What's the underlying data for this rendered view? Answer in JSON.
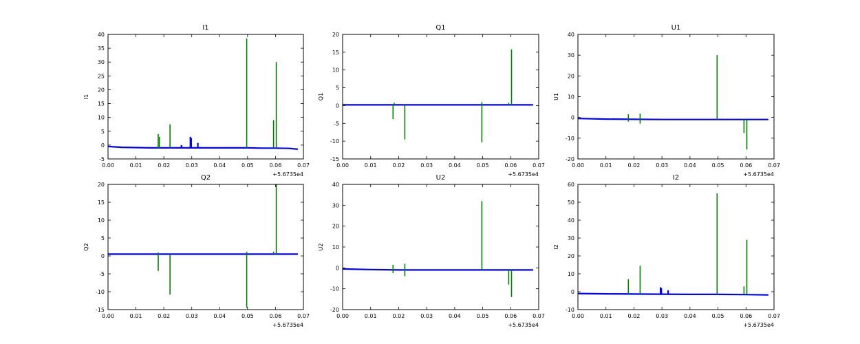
{
  "colors": {
    "series_blue": "#0000ff",
    "series_green": "#007f00",
    "axes": "#000000",
    "background": "#ffffff"
  },
  "chart_data": [
    {
      "type": "line",
      "title": "I1",
      "ylabel": "I1",
      "xlabel": "",
      "x_offset_label": "+5.6735e4",
      "xlim": [
        0.0,
        0.07
      ],
      "ylim": [
        -5,
        40
      ],
      "xticks": [
        "0.00",
        "0.01",
        "0.02",
        "0.03",
        "0.04",
        "0.05",
        "0.06",
        "0.07"
      ],
      "yticks": [
        "-5",
        "0",
        "5",
        "10",
        "15",
        "20",
        "25",
        "30",
        "35",
        "40"
      ],
      "grid": false,
      "series": [
        {
          "color": "blue",
          "segments": [
            [
              [
                0.0,
                -0.5
              ],
              [
                0.005,
                -0.8
              ],
              [
                0.01,
                -0.9
              ],
              [
                0.015,
                -1.0
              ],
              [
                0.02,
                -1.0
              ],
              [
                0.025,
                -1.0
              ],
              [
                0.03,
                -1.0
              ],
              [
                0.035,
                -1.0
              ],
              [
                0.04,
                -1.0
              ],
              [
                0.045,
                -1.0
              ],
              [
                0.05,
                -1.0
              ],
              [
                0.055,
                -1.1
              ],
              [
                0.06,
                -1.1
              ],
              [
                0.065,
                -1.2
              ],
              [
                0.068,
                -1.5
              ]
            ],
            [
              [
                0.0263,
                -1.0
              ],
              [
                0.0263,
                0.0
              ]
            ],
            [
              [
                0.0295,
                -1.0
              ],
              [
                0.0295,
                3.0
              ]
            ],
            [
              [
                0.0298,
                -1.0
              ],
              [
                0.0298,
                2.5
              ]
            ],
            [
              [
                0.0322,
                -1.0
              ],
              [
                0.0322,
                0.8
              ]
            ]
          ]
        },
        {
          "color": "green",
          "segments": [
            [
              [
                0.018,
                -1.0
              ],
              [
                0.018,
                4.0
              ]
            ],
            [
              [
                0.0184,
                -1.0
              ],
              [
                0.0184,
                3.0
              ]
            ],
            [
              [
                0.0222,
                -1.0
              ],
              [
                0.0222,
                7.5
              ]
            ],
            [
              [
                0.0497,
                -1.0
              ],
              [
                0.0497,
                38.5
              ]
            ],
            [
              [
                0.0593,
                -1.0
              ],
              [
                0.0593,
                9.0
              ]
            ],
            [
              [
                0.0603,
                -1.0
              ],
              [
                0.0603,
                30.0
              ]
            ]
          ]
        }
      ]
    },
    {
      "type": "line",
      "title": "Q1",
      "ylabel": "Q1",
      "xlabel": "",
      "x_offset_label": "+5.6735e4",
      "xlim": [
        0.0,
        0.07
      ],
      "ylim": [
        -15,
        20
      ],
      "xticks": [
        "0.00",
        "0.01",
        "0.02",
        "0.03",
        "0.04",
        "0.05",
        "0.06",
        "0.07"
      ],
      "yticks": [
        "-15",
        "-10",
        "-5",
        "0",
        "5",
        "10",
        "15",
        "20"
      ],
      "grid": false,
      "series": [
        {
          "color": "blue",
          "segments": [
            [
              [
                0.0,
                0.2
              ],
              [
                0.01,
                0.2
              ],
              [
                0.02,
                0.2
              ],
              [
                0.03,
                0.2
              ],
              [
                0.04,
                0.2
              ],
              [
                0.05,
                0.2
              ],
              [
                0.06,
                0.2
              ],
              [
                0.068,
                0.2
              ]
            ]
          ]
        },
        {
          "color": "green",
          "segments": [
            [
              [
                0.018,
                0.2
              ],
              [
                0.018,
                -3.8
              ]
            ],
            [
              [
                0.0184,
                0.2
              ],
              [
                0.0184,
                0.8
              ]
            ],
            [
              [
                0.0222,
                0.2
              ],
              [
                0.0222,
                -9.5
              ]
            ],
            [
              [
                0.0497,
                0.2
              ],
              [
                0.0497,
                -10.3
              ]
            ],
            [
              [
                0.0497,
                0.2
              ],
              [
                0.0497,
                1.0
              ]
            ],
            [
              [
                0.0593,
                0.2
              ],
              [
                0.0593,
                0.8
              ]
            ],
            [
              [
                0.0603,
                0.2
              ],
              [
                0.0603,
                15.8
              ]
            ]
          ]
        }
      ]
    },
    {
      "type": "line",
      "title": "U1",
      "ylabel": "U1",
      "xlabel": "",
      "x_offset_label": "+5.6735e4",
      "xlim": [
        0.0,
        0.07
      ],
      "ylim": [
        -20,
        40
      ],
      "xticks": [
        "0.00",
        "0.01",
        "0.02",
        "0.03",
        "0.04",
        "0.05",
        "0.06",
        "0.07"
      ],
      "yticks": [
        "-20",
        "-10",
        "0",
        "10",
        "20",
        "30",
        "40"
      ],
      "grid": false,
      "series": [
        {
          "color": "blue",
          "segments": [
            [
              [
                0.0,
                -0.5
              ],
              [
                0.01,
                -0.8
              ],
              [
                0.02,
                -0.9
              ],
              [
                0.03,
                -1.0
              ],
              [
                0.04,
                -1.0
              ],
              [
                0.05,
                -1.0
              ],
              [
                0.06,
                -1.0
              ],
              [
                0.068,
                -1.0
              ]
            ]
          ]
        },
        {
          "color": "green",
          "segments": [
            [
              [
                0.018,
                -1.0
              ],
              [
                0.018,
                1.5
              ]
            ],
            [
              [
                0.018,
                -1.0
              ],
              [
                0.018,
                -2.0
              ]
            ],
            [
              [
                0.0222,
                -1.0
              ],
              [
                0.0222,
                1.8
              ]
            ],
            [
              [
                0.0222,
                -1.0
              ],
              [
                0.0222,
                -3.0
              ]
            ],
            [
              [
                0.0497,
                -1.0
              ],
              [
                0.0497,
                30.0
              ]
            ],
            [
              [
                0.0593,
                -1.0
              ],
              [
                0.0593,
                -7.5
              ]
            ],
            [
              [
                0.0603,
                -1.0
              ],
              [
                0.0603,
                -15.5
              ]
            ]
          ]
        }
      ]
    },
    {
      "type": "line",
      "title": "Q2",
      "ylabel": "Q2",
      "xlabel": "",
      "x_offset_label": "+5.6735e4",
      "xlim": [
        0.0,
        0.07
      ],
      "ylim": [
        -15,
        20
      ],
      "xticks": [
        "0.00",
        "0.01",
        "0.02",
        "0.03",
        "0.04",
        "0.05",
        "0.06",
        "0.07"
      ],
      "yticks": [
        "-15",
        "-10",
        "-5",
        "0",
        "5",
        "10",
        "15",
        "20"
      ],
      "grid": false,
      "series": [
        {
          "color": "blue",
          "segments": [
            [
              [
                0.0,
                0.5
              ],
              [
                0.01,
                0.5
              ],
              [
                0.02,
                0.5
              ],
              [
                0.03,
                0.5
              ],
              [
                0.04,
                0.5
              ],
              [
                0.05,
                0.5
              ],
              [
                0.06,
                0.5
              ],
              [
                0.068,
                0.5
              ]
            ]
          ]
        },
        {
          "color": "green",
          "segments": [
            [
              [
                0.018,
                0.5
              ],
              [
                0.018,
                -4.2
              ]
            ],
            [
              [
                0.018,
                0.5
              ],
              [
                0.018,
                1.0
              ]
            ],
            [
              [
                0.0222,
                0.5
              ],
              [
                0.0222,
                -10.8
              ]
            ],
            [
              [
                0.0497,
                0.5
              ],
              [
                0.0497,
                -14.5
              ]
            ],
            [
              [
                0.0497,
                0.5
              ],
              [
                0.0497,
                1.2
              ]
            ],
            [
              [
                0.0593,
                0.5
              ],
              [
                0.0593,
                1.2
              ]
            ],
            [
              [
                0.0603,
                0.5
              ],
              [
                0.0603,
                20.0
              ]
            ]
          ]
        }
      ]
    },
    {
      "type": "line",
      "title": "U2",
      "ylabel": "U2",
      "xlabel": "",
      "x_offset_label": "+5.6735e4",
      "xlim": [
        0.0,
        0.07
      ],
      "ylim": [
        -20,
        40
      ],
      "xticks": [
        "0.00",
        "0.01",
        "0.02",
        "0.03",
        "0.04",
        "0.05",
        "0.06",
        "0.07"
      ],
      "yticks": [
        "-20",
        "-10",
        "0",
        "10",
        "20",
        "30",
        "40"
      ],
      "grid": false,
      "series": [
        {
          "color": "blue",
          "segments": [
            [
              [
                0.0,
                -0.5
              ],
              [
                0.01,
                -0.8
              ],
              [
                0.02,
                -1.0
              ],
              [
                0.03,
                -1.0
              ],
              [
                0.04,
                -1.0
              ],
              [
                0.05,
                -1.0
              ],
              [
                0.06,
                -1.0
              ],
              [
                0.068,
                -1.0
              ]
            ]
          ]
        },
        {
          "color": "green",
          "segments": [
            [
              [
                0.018,
                -1.0
              ],
              [
                0.018,
                1.5
              ]
            ],
            [
              [
                0.018,
                -1.0
              ],
              [
                0.018,
                -2.5
              ]
            ],
            [
              [
                0.0222,
                -1.0
              ],
              [
                0.0222,
                2.0
              ]
            ],
            [
              [
                0.0222,
                -1.0
              ],
              [
                0.0222,
                -4.0
              ]
            ],
            [
              [
                0.0497,
                -1.0
              ],
              [
                0.0497,
                32.0
              ]
            ],
            [
              [
                0.0593,
                -1.0
              ],
              [
                0.0593,
                -8.0
              ]
            ],
            [
              [
                0.0603,
                -1.0
              ],
              [
                0.0603,
                -14.0
              ]
            ]
          ]
        }
      ]
    },
    {
      "type": "line",
      "title": "I2",
      "ylabel": "I2",
      "xlabel": "",
      "x_offset_label": "+5.6735e4",
      "xlim": [
        0.0,
        0.07
      ],
      "ylim": [
        -10,
        60
      ],
      "xticks": [
        "0.00",
        "0.01",
        "0.02",
        "0.03",
        "0.04",
        "0.05",
        "0.06",
        "0.07"
      ],
      "yticks": [
        "-10",
        "0",
        "10",
        "20",
        "30",
        "40",
        "50",
        "60"
      ],
      "grid": false,
      "series": [
        {
          "color": "blue",
          "segments": [
            [
              [
                0.0,
                -1.0
              ],
              [
                0.01,
                -1.2
              ],
              [
                0.02,
                -1.3
              ],
              [
                0.03,
                -1.4
              ],
              [
                0.04,
                -1.5
              ],
              [
                0.05,
                -1.5
              ],
              [
                0.06,
                -1.6
              ],
              [
                0.068,
                -1.8
              ]
            ],
            [
              [
                0.0295,
                -1.3
              ],
              [
                0.0295,
                2.5
              ]
            ],
            [
              [
                0.0298,
                -1.3
              ],
              [
                0.0298,
                2.0
              ]
            ],
            [
              [
                0.0322,
                -1.3
              ],
              [
                0.0322,
                0.8
              ]
            ]
          ]
        },
        {
          "color": "green",
          "segments": [
            [
              [
                0.018,
                -1.2
              ],
              [
                0.018,
                7.0
              ]
            ],
            [
              [
                0.0222,
                -1.2
              ],
              [
                0.0222,
                14.5
              ]
            ],
            [
              [
                0.0497,
                -1.5
              ],
              [
                0.0497,
                55.0
              ]
            ],
            [
              [
                0.0593,
                -1.5
              ],
              [
                0.0593,
                3.0
              ]
            ],
            [
              [
                0.0603,
                -1.5
              ],
              [
                0.0603,
                29.0
              ]
            ]
          ]
        }
      ]
    }
  ]
}
